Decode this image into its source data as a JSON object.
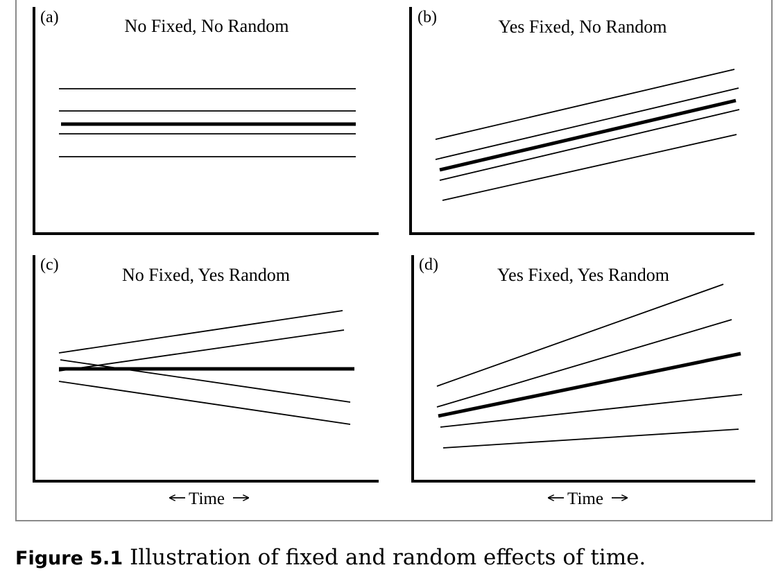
{
  "panels": [
    {
      "letter": "(a)",
      "title": "No Fixed, No Random",
      "lines": [
        {
          "x1": 85,
          "y1": 128,
          "x2": 513,
          "y2": 128,
          "bold": false
        },
        {
          "x1": 85,
          "y1": 160,
          "x2": 513,
          "y2": 160,
          "bold": false
        },
        {
          "x1": 88,
          "y1": 179,
          "x2": 513,
          "y2": 179,
          "bold": true
        },
        {
          "x1": 85,
          "y1": 193,
          "x2": 513,
          "y2": 193,
          "bold": false
        },
        {
          "x1": 85,
          "y1": 226,
          "x2": 513,
          "y2": 226,
          "bold": false
        }
      ]
    },
    {
      "letter": "(b)",
      "title": "Yes Fixed, No Random",
      "lines": [
        {
          "x1": 628,
          "y1": 201,
          "x2": 1059,
          "y2": 100,
          "bold": false
        },
        {
          "x1": 628,
          "y1": 230,
          "x2": 1065,
          "y2": 127,
          "bold": false
        },
        {
          "x1": 634,
          "y1": 245,
          "x2": 1061,
          "y2": 145,
          "bold": true
        },
        {
          "x1": 634,
          "y1": 260,
          "x2": 1066,
          "y2": 158,
          "bold": false
        },
        {
          "x1": 638,
          "y1": 289,
          "x2": 1062,
          "y2": 194,
          "bold": false
        }
      ]
    },
    {
      "letter": "(c)",
      "title": "No Fixed, Yes Random",
      "lines": [
        {
          "x1": 85,
          "y1": 509,
          "x2": 494,
          "y2": 448,
          "bold": false
        },
        {
          "x1": 85,
          "y1": 535,
          "x2": 496,
          "y2": 476,
          "bold": false
        },
        {
          "x1": 85,
          "y1": 532,
          "x2": 511,
          "y2": 532,
          "bold": true
        },
        {
          "x1": 87,
          "y1": 519,
          "x2": 505,
          "y2": 580,
          "bold": false
        },
        {
          "x1": 85,
          "y1": 550,
          "x2": 505,
          "y2": 612,
          "bold": false
        }
      ]
    },
    {
      "letter": "(d)",
      "title": "Yes Fixed, Yes Random",
      "lines": [
        {
          "x1": 630,
          "y1": 557,
          "x2": 1043,
          "y2": 410,
          "bold": false
        },
        {
          "x1": 630,
          "y1": 587,
          "x2": 1055,
          "y2": 461,
          "bold": false
        },
        {
          "x1": 632,
          "y1": 600,
          "x2": 1068,
          "y2": 510,
          "bold": true
        },
        {
          "x1": 635,
          "y1": 616,
          "x2": 1070,
          "y2": 569,
          "bold": false
        },
        {
          "x1": 639,
          "y1": 646,
          "x2": 1065,
          "y2": 619,
          "bold": false
        }
      ]
    }
  ],
  "time_label": "Time",
  "caption": {
    "label": "Figure 5.1",
    "text": "Illustration of fixed and random effects of time."
  }
}
